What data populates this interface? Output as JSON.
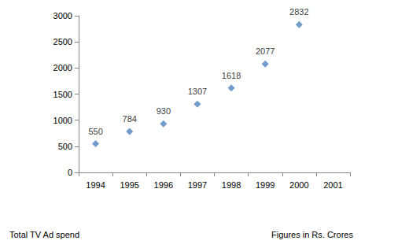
{
  "chart_data": {
    "type": "scatter",
    "categories": [
      "1994",
      "1995",
      "1996",
      "1997",
      "1998",
      "1999",
      "2000",
      "2001"
    ],
    "values": [
      550,
      784,
      930,
      1307,
      1618,
      2077,
      2832,
      null
    ],
    "color": "#4f81bd",
    "marker": "diamond",
    "ylim": [
      0,
      3000
    ],
    "yticks": [
      0,
      500,
      1000,
      1500,
      2000,
      2500,
      3000
    ],
    "grid": false,
    "data_labels": true,
    "annotations": [
      "Total TV Ad spend",
      "Figures in Rs. Crores"
    ]
  }
}
